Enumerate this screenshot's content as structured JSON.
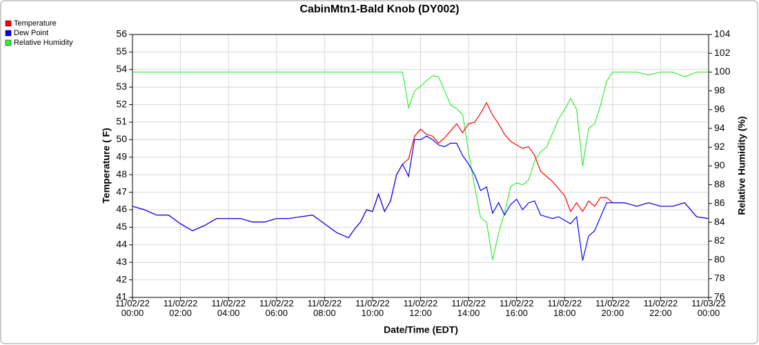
{
  "chart_data": {
    "type": "line",
    "title": "CabinMtn1-Bald Knob (DY002)",
    "x_label": "Date/Time (EDT)",
    "y_label": "Temperature ( F)",
    "y2_label": "Relative Humidity (%)",
    "x": [
      "11/02/22 00:00",
      "11/02/22 00:30",
      "11/02/22 01:00",
      "11/02/22 01:30",
      "11/02/22 02:00",
      "11/02/22 02:30",
      "11/02/22 03:00",
      "11/02/22 03:30",
      "11/02/22 04:00",
      "11/02/22 04:30",
      "11/02/22 05:00",
      "11/02/22 05:30",
      "11/02/22 06:00",
      "11/02/22 06:30",
      "11/02/22 07:00",
      "11/02/22 07:30",
      "11/02/22 08:00",
      "11/02/22 08:30",
      "11/02/22 09:00",
      "11/02/22 09:15",
      "11/02/22 09:30",
      "11/02/22 09:45",
      "11/02/22 10:00",
      "11/02/22 10:15",
      "11/02/22 10:30",
      "11/02/22 10:45",
      "11/02/22 11:00",
      "11/02/22 11:15",
      "11/02/22 11:30",
      "11/02/22 11:45",
      "11/02/22 12:00",
      "11/02/22 12:15",
      "11/02/22 12:30",
      "11/02/22 12:45",
      "11/02/22 13:00",
      "11/02/22 13:15",
      "11/02/22 13:30",
      "11/02/22 13:45",
      "11/02/22 14:00",
      "11/02/22 14:15",
      "11/02/22 14:30",
      "11/02/22 14:45",
      "11/02/22 15:00",
      "11/02/22 15:15",
      "11/02/22 15:30",
      "11/02/22 15:45",
      "11/02/22 16:00",
      "11/02/22 16:15",
      "11/02/22 16:30",
      "11/02/22 16:45",
      "11/02/22 17:00",
      "11/02/22 17:15",
      "11/02/22 17:30",
      "11/02/22 17:45",
      "11/02/22 18:00",
      "11/02/22 18:15",
      "11/02/22 18:30",
      "11/02/22 18:45",
      "11/02/22 19:00",
      "11/02/22 19:15",
      "11/02/22 19:30",
      "11/02/22 19:45",
      "11/02/22 20:00",
      "11/02/22 20:30",
      "11/02/22 21:00",
      "11/02/22 21:30",
      "11/02/22 22:00",
      "11/02/22 22:30",
      "11/02/22 23:00",
      "11/02/22 23:30",
      "11/03/22 00:00"
    ],
    "series": [
      {
        "name": "Temperature",
        "color": "#ff0000",
        "axis": "y",
        "values": [
          46.2,
          46.0,
          45.7,
          45.7,
          45.2,
          44.8,
          45.1,
          45.5,
          45.5,
          45.5,
          45.3,
          45.3,
          45.5,
          45.5,
          45.6,
          45.7,
          45.2,
          44.7,
          44.4,
          44.9,
          45.3,
          46.0,
          45.9,
          46.9,
          45.9,
          46.5,
          48.0,
          48.6,
          48.9,
          50.2,
          50.6,
          50.3,
          50.2,
          49.8,
          50.1,
          50.5,
          50.9,
          50.4,
          50.9,
          51.0,
          51.5,
          52.1,
          51.4,
          50.9,
          50.3,
          49.9,
          49.7,
          49.5,
          49.6,
          49.1,
          48.2,
          47.9,
          47.6,
          47.2,
          46.8,
          45.9,
          46.4,
          45.9,
          46.5,
          46.2,
          46.7,
          46.7,
          46.4,
          46.4,
          46.2,
          46.4,
          46.2,
          46.2,
          46.4,
          45.6,
          45.5
        ]
      },
      {
        "name": "Dew Point",
        "color": "#0000ff",
        "axis": "y",
        "values": [
          46.2,
          46.0,
          45.7,
          45.7,
          45.2,
          44.8,
          45.1,
          45.5,
          45.5,
          45.5,
          45.3,
          45.3,
          45.5,
          45.5,
          45.6,
          45.7,
          45.2,
          44.7,
          44.4,
          44.9,
          45.3,
          46.0,
          45.9,
          46.9,
          45.9,
          46.5,
          48.0,
          48.6,
          47.9,
          50.0,
          50.0,
          50.2,
          50.0,
          49.7,
          49.6,
          49.8,
          49.8,
          49.1,
          48.6,
          48.0,
          47.1,
          47.3,
          45.8,
          46.4,
          45.7,
          46.3,
          46.6,
          46.0,
          46.4,
          46.5,
          45.7,
          45.6,
          45.5,
          45.6,
          45.4,
          45.2,
          45.6,
          43.1,
          44.5,
          44.8,
          45.6,
          46.4,
          46.4,
          46.4,
          46.2,
          46.4,
          46.2,
          46.2,
          46.4,
          45.6,
          45.5
        ]
      },
      {
        "name": "Relative Humidity",
        "color": "#33ee33",
        "axis": "y2",
        "values": [
          100,
          100,
          100,
          100,
          100,
          100,
          100,
          100,
          100,
          100,
          100,
          100,
          100,
          100,
          100,
          100,
          100,
          100,
          100,
          100,
          100,
          100,
          100,
          100,
          100,
          100,
          100,
          100,
          96.2,
          98.0,
          98.5,
          99.1,
          99.6,
          99.5,
          98.0,
          96.5,
          96.1,
          95.5,
          91.5,
          87.8,
          84.5,
          84.0,
          80.0,
          82.8,
          85.0,
          87.8,
          88.2,
          88.0,
          88.5,
          90.5,
          91.5,
          92.0,
          93.5,
          95.0,
          96.0,
          97.2,
          96.0,
          90.0,
          94.0,
          94.5,
          96.5,
          99.0,
          100,
          100,
          100,
          99.7,
          100,
          100,
          99.5,
          100,
          100
        ]
      }
    ],
    "xlim": [
      "11/02/22 00:00",
      "11/03/22 00:00"
    ],
    "xticks": [
      "11/02/22 00:00",
      "11/02/22 02:00",
      "11/02/22 04:00",
      "11/02/22 06:00",
      "11/02/22 08:00",
      "11/02/22 10:00",
      "11/02/22 12:00",
      "11/02/22 14:00",
      "11/02/22 16:00",
      "11/02/22 18:00",
      "11/02/22 20:00",
      "11/02/22 22:00",
      "11/03/22 00:00"
    ],
    "ylim": [
      41,
      56
    ],
    "yticks": [
      41,
      42,
      43,
      44,
      45,
      46,
      47,
      48,
      49,
      50,
      51,
      52,
      53,
      54,
      55,
      56
    ],
    "y2lim": [
      76,
      104
    ],
    "y2ticks": [
      76,
      78,
      80,
      82,
      84,
      86,
      88,
      90,
      92,
      94,
      96,
      98,
      100,
      102,
      104
    ],
    "grid": true,
    "legend": "top-left"
  }
}
